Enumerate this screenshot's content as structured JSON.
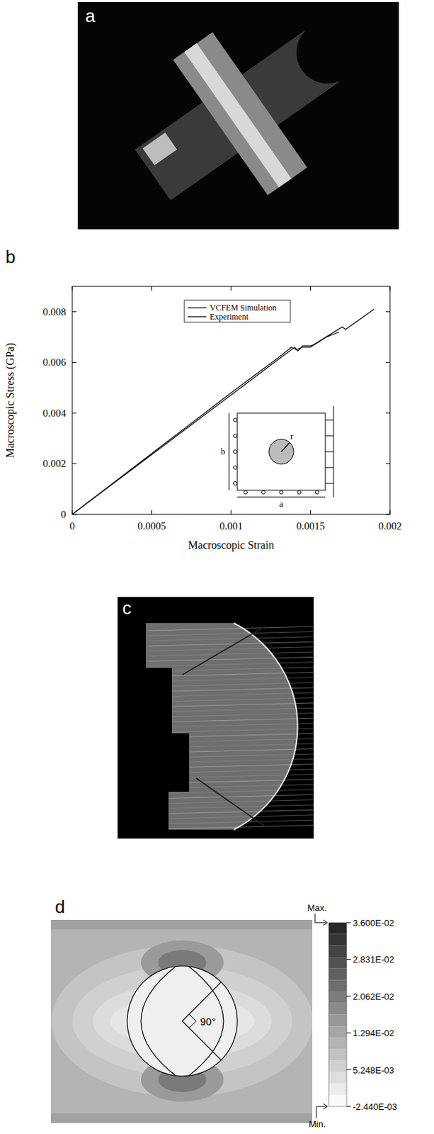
{
  "figure": {
    "panel_labels": [
      "a",
      "b",
      "c",
      "d"
    ]
  },
  "chart_data": {
    "type": "line",
    "xlabel": "Macroscopic Strain",
    "ylabel": "Macroscopic Stress (GPa)",
    "xlim": [
      0,
      0.002
    ],
    "ylim": [
      0,
      0.009
    ],
    "xticks": [
      0,
      0.0005,
      0.001,
      0.0015,
      0.002
    ],
    "yticks": [
      0,
      0.002,
      0.004,
      0.006,
      0.008
    ],
    "grid": false,
    "legend": "top",
    "series": [
      {
        "name": "VCFEM Simulation",
        "color": "#000000",
        "x": [
          0,
          0.0014,
          0.00142,
          0.00145,
          0.0015,
          0.00152,
          0.0017,
          0.00172,
          0.0019
        ],
        "values": [
          0,
          0.0066,
          0.00645,
          0.00665,
          0.00665,
          0.0067,
          0.0074,
          0.0073,
          0.0081
        ]
      },
      {
        "name": "Experiment",
        "color": "#000000",
        "x": [
          0,
          0.0005,
          0.001,
          0.0013,
          0.00138,
          0.00141,
          0.00145,
          0.0015,
          0.0016,
          0.00168
        ],
        "values": [
          0,
          0.0024,
          0.0048,
          0.0062,
          0.0066,
          0.0065,
          0.0066,
          0.0066,
          0.007,
          0.0072
        ]
      }
    ],
    "inset_labels": [
      "b",
      "r",
      "a"
    ]
  },
  "contour": {
    "angle_label": "90°",
    "colorbar": {
      "range": [
        -0.00244,
        0.036
      ],
      "ticks": [
        {
          "value": 0.036,
          "label": "3.600E-02"
        },
        {
          "value": 0.02831,
          "label": "2.831E-02"
        },
        {
          "value": 0.02062,
          "label": "2.062E-02"
        },
        {
          "value": 0.01294,
          "label": "1.294E-02"
        },
        {
          "value": 0.005248,
          "label": "5.248E-03"
        },
        {
          "value": -0.00244,
          "label": "-2.440E-03"
        }
      ],
      "max_label": "Max.",
      "min_label": "Min."
    }
  }
}
